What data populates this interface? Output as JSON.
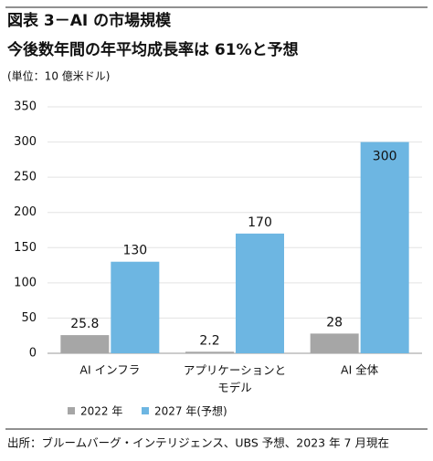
{
  "chart_data": {
    "type": "bar",
    "title": "図表 3－AI の市場規模",
    "subtitle": "今後数年間の年平均成長率は 61%と予想",
    "unit_label": "(単位：10 億米ドル)",
    "categories": [
      "AI インフラ",
      "アプリケーションと\nモデル",
      "AI 全体"
    ],
    "series": [
      {
        "name": "2022 年",
        "color": "#a6a6a6",
        "values": [
          25.8,
          2.2,
          28
        ]
      },
      {
        "name": "2027 年(予想)",
        "color": "#6db6e2",
        "values": [
          130,
          170,
          300
        ]
      }
    ],
    "ylim": [
      0,
      350
    ],
    "yticks": [
      0,
      50,
      100,
      150,
      200,
      250,
      300,
      350
    ],
    "grid": true,
    "legend": "bottom",
    "source": "出所：ブルームバーグ・インテリジェンス、UBS 予想、2023 年 7 月現在"
  }
}
